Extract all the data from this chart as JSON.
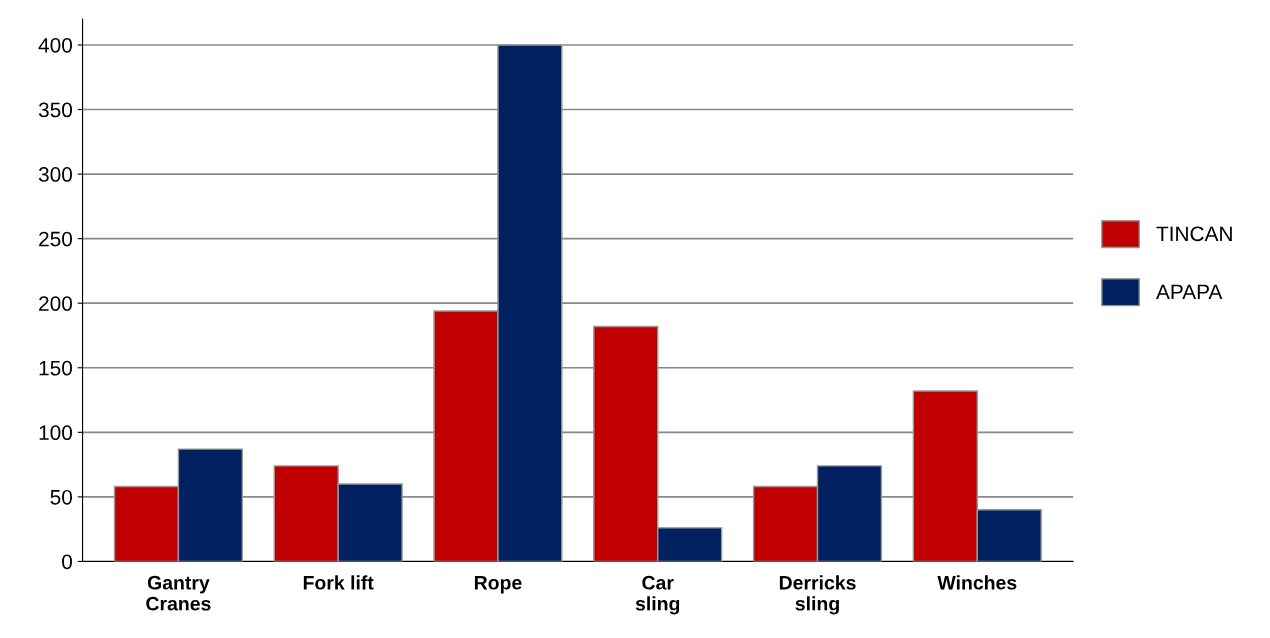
{
  "chart_data": {
    "type": "bar",
    "categories": [
      "Gantry\nCranes",
      "Fork lift",
      "Rope",
      "Car\nsling",
      "Derricks\nsling",
      "Winches"
    ],
    "series": [
      {
        "name": "TINCAN",
        "color": "#c00000",
        "values": [
          58,
          74,
          194,
          182,
          58,
          132
        ]
      },
      {
        "name": "APAPA",
        "color": "#002060",
        "values": [
          87,
          60,
          400,
          26,
          74,
          40
        ]
      }
    ],
    "ylim": [
      0,
      420
    ],
    "yticks": [
      0,
      50,
      100,
      150,
      200,
      250,
      300,
      350,
      400
    ],
    "grid": "y",
    "legend": "right"
  }
}
